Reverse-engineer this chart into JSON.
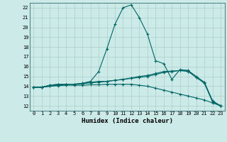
{
  "xlabel": "Humidex (Indice chaleur)",
  "bg_color": "#cceae7",
  "grid_color": "#aacfcc",
  "line_color": "#006666",
  "xlim": [
    -0.5,
    23.5
  ],
  "ylim": [
    11.5,
    22.5
  ],
  "xticks": [
    0,
    1,
    2,
    3,
    4,
    5,
    6,
    7,
    8,
    9,
    10,
    11,
    12,
    13,
    14,
    15,
    16,
    17,
    18,
    19,
    20,
    21,
    22,
    23
  ],
  "yticks": [
    12,
    13,
    14,
    15,
    16,
    17,
    18,
    19,
    20,
    21,
    22
  ],
  "line1_x": [
    0,
    1,
    2,
    3,
    4,
    5,
    6,
    7,
    8,
    9,
    10,
    11,
    12,
    13,
    14,
    15,
    16,
    17,
    18,
    19,
    20,
    21,
    22,
    23
  ],
  "line1_y": [
    13.9,
    13.9,
    14.1,
    14.2,
    14.2,
    14.2,
    14.3,
    14.5,
    15.5,
    17.8,
    20.3,
    22.0,
    22.3,
    21.0,
    19.3,
    16.6,
    16.3,
    14.7,
    15.7,
    15.6,
    14.9,
    14.4,
    12.5,
    12.0
  ],
  "line2_x": [
    0,
    1,
    2,
    3,
    4,
    5,
    6,
    7,
    8,
    9,
    10,
    11,
    12,
    13,
    14,
    15,
    16,
    17,
    18,
    19,
    20,
    21,
    22,
    23
  ],
  "line2_y": [
    13.9,
    13.9,
    14.1,
    14.2,
    14.2,
    14.2,
    14.3,
    14.4,
    14.5,
    14.5,
    14.6,
    14.7,
    14.8,
    14.9,
    15.0,
    15.2,
    15.4,
    15.5,
    15.6,
    15.6,
    15.0,
    14.4,
    12.5,
    12.0
  ],
  "line3_x": [
    0,
    1,
    2,
    3,
    4,
    5,
    6,
    7,
    8,
    9,
    10,
    11,
    12,
    13,
    14,
    15,
    16,
    17,
    18,
    19,
    20,
    21,
    22,
    23
  ],
  "line3_y": [
    13.9,
    13.9,
    14.0,
    14.05,
    14.1,
    14.1,
    14.1,
    14.15,
    14.15,
    14.2,
    14.2,
    14.2,
    14.2,
    14.1,
    14.0,
    13.8,
    13.6,
    13.4,
    13.2,
    13.0,
    12.8,
    12.6,
    12.3,
    12.0
  ],
  "line4_x": [
    0,
    1,
    2,
    3,
    4,
    5,
    6,
    7,
    8,
    9,
    10,
    11,
    12,
    13,
    14,
    15,
    16,
    17,
    18,
    19,
    20,
    21,
    22,
    23
  ],
  "line4_y": [
    13.9,
    13.9,
    14.0,
    14.1,
    14.2,
    14.2,
    14.25,
    14.35,
    14.4,
    14.5,
    14.6,
    14.7,
    14.85,
    15.0,
    15.1,
    15.3,
    15.5,
    15.55,
    15.6,
    15.5,
    14.9,
    14.3,
    12.4,
    12.0
  ]
}
